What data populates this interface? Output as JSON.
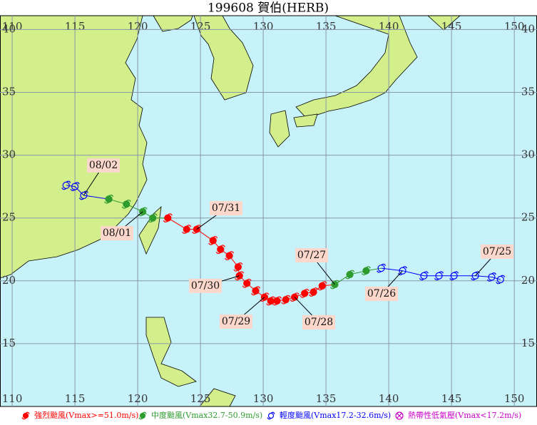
{
  "title": "199608 賀伯(HERB)",
  "xlim": [
    109.03,
    151.81
  ],
  "ylim": [
    10,
    41.1
  ],
  "lon_ticks": [
    110,
    115,
    120,
    125,
    130,
    135,
    140,
    145,
    150
  ],
  "lat_ticks": [
    15,
    20,
    25,
    30,
    35,
    40
  ],
  "track": [
    {
      "lon": 148.9,
      "lat": 20.1,
      "color": "#0000ff"
    },
    {
      "lon": 148.2,
      "lat": 20.3,
      "color": "#0000ff"
    },
    {
      "lon": 146.9,
      "lat": 20.4,
      "color": "#0000ff"
    },
    {
      "lon": 145.2,
      "lat": 20.4,
      "color": "#0000ff"
    },
    {
      "lon": 144.0,
      "lat": 20.4,
      "color": "#0000ff"
    },
    {
      "lon": 142.8,
      "lat": 20.4,
      "color": "#0000ff"
    },
    {
      "lon": 141.1,
      "lat": 20.8,
      "color": "#0000ff"
    },
    {
      "lon": 139.4,
      "lat": 21.0,
      "color": "#0000ff"
    },
    {
      "lon": 138.2,
      "lat": 20.8,
      "color": "#2e9b2e"
    },
    {
      "lon": 136.9,
      "lat": 20.5,
      "color": "#2e9b2e"
    },
    {
      "lon": 135.7,
      "lat": 19.7,
      "color": "#2e9b2e"
    },
    {
      "lon": 134.7,
      "lat": 19.6,
      "color": "#ff0000"
    },
    {
      "lon": 134.0,
      "lat": 19.1,
      "color": "#ff0000"
    },
    {
      "lon": 133.3,
      "lat": 19.0,
      "color": "#ff0000"
    },
    {
      "lon": 132.5,
      "lat": 18.7,
      "color": "#ff0000"
    },
    {
      "lon": 131.8,
      "lat": 18.5,
      "color": "#ff0000"
    },
    {
      "lon": 131.1,
      "lat": 18.4,
      "color": "#ff0000"
    },
    {
      "lon": 130.6,
      "lat": 18.4,
      "color": "#ff0000"
    },
    {
      "lon": 130.1,
      "lat": 18.7,
      "color": "#ff0000"
    },
    {
      "lon": 129.4,
      "lat": 19.2,
      "color": "#ff0000"
    },
    {
      "lon": 128.7,
      "lat": 19.8,
      "color": "#ff0000"
    },
    {
      "lon": 128.1,
      "lat": 20.4,
      "color": "#ff0000"
    },
    {
      "lon": 128.0,
      "lat": 21.1,
      "color": "#ff0000"
    },
    {
      "lon": 127.3,
      "lat": 22.0,
      "color": "#ff0000"
    },
    {
      "lon": 126.6,
      "lat": 22.5,
      "color": "#ff0000"
    },
    {
      "lon": 126.0,
      "lat": 23.2,
      "color": "#ff0000"
    },
    {
      "lon": 124.7,
      "lat": 24.1,
      "color": "#ff0000"
    },
    {
      "lon": 123.9,
      "lat": 24.1,
      "color": "#ff0000"
    },
    {
      "lon": 122.4,
      "lat": 25.0,
      "color": "#ff0000"
    },
    {
      "lon": 121.2,
      "lat": 25.0,
      "color": "#2e9b2e"
    },
    {
      "lon": 120.4,
      "lat": 25.5,
      "color": "#2e9b2e"
    },
    {
      "lon": 119.1,
      "lat": 26.1,
      "color": "#2e9b2e"
    },
    {
      "lon": 117.7,
      "lat": 26.5,
      "color": "#2e9b2e"
    },
    {
      "lon": 115.7,
      "lat": 26.8,
      "color": "#0000ff"
    },
    {
      "lon": 115.0,
      "lat": 27.5,
      "color": "#0000ff"
    },
    {
      "lon": 114.3,
      "lat": 27.6,
      "color": "#0000ff"
    }
  ],
  "date_labels": [
    "07/25",
    "07/26",
    "07/27",
    "07/28",
    "07/29",
    "07/30",
    "07/31",
    "08/01",
    "08/02"
  ],
  "legend": [
    {
      "label": "強烈颱風(Vmax>=51.0m/s)",
      "color": "#ff0000"
    },
    {
      "label": "中度颱風(Vmax32.7-50.9m/s)",
      "color": "#2e9b2e"
    },
    {
      "label": "輕度颱風(Vmax17.2-32.6m/s)",
      "color": "#0000ff"
    },
    {
      "label": "熱帶性低氣壓(Vmax<17.2m/s)",
      "color": "#cc00cc"
    }
  ]
}
